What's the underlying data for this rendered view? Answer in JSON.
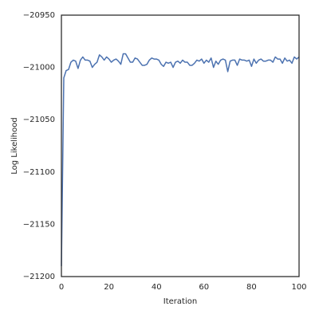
{
  "chart_data": {
    "type": "line",
    "xlabel": "Iteration",
    "ylabel": "Log Likelihood",
    "x": [
      0,
      1,
      2,
      3,
      4,
      5,
      6,
      7,
      8,
      9,
      10,
      11,
      12,
      13,
      14,
      15,
      16,
      17,
      18,
      19,
      20,
      21,
      22,
      23,
      24,
      25,
      26,
      27,
      28,
      29,
      30,
      31,
      32,
      33,
      34,
      35,
      36,
      37,
      38,
      39,
      40,
      41,
      42,
      43,
      44,
      45,
      46,
      47,
      48,
      49,
      50,
      51,
      52,
      53,
      54,
      55,
      56,
      57,
      58,
      59,
      60,
      61,
      62,
      63,
      64,
      65,
      66,
      67,
      68,
      69,
      70,
      71,
      72,
      73,
      74,
      75,
      76,
      77,
      78,
      79,
      80,
      81,
      82,
      83,
      84,
      85,
      86,
      87,
      88,
      89,
      90,
      91,
      92,
      93,
      94,
      95,
      96,
      97,
      98,
      99,
      100
    ],
    "series": [
      {
        "name": "Log Likelihood",
        "color": "#4c72b0",
        "values": [
          -21190,
          -21010,
          -21003,
          -21002,
          -20995,
          -20993,
          -20994,
          -21001,
          -20993,
          -20990,
          -20993,
          -20993,
          -20994,
          -21000,
          -20997,
          -20995,
          -20988,
          -20990,
          -20993,
          -20990,
          -20992,
          -20995,
          -20993,
          -20992,
          -20994,
          -20997,
          -20987,
          -20987,
          -20991,
          -20995,
          -20995,
          -20991,
          -20992,
          -20995,
          -20998,
          -20998,
          -20997,
          -20993,
          -20991,
          -20992,
          -20992,
          -20993,
          -20997,
          -20999,
          -20995,
          -20996,
          -20995,
          -21000,
          -20995,
          -20994,
          -20996,
          -20993,
          -20995,
          -20995,
          -20998,
          -20998,
          -20996,
          -20993,
          -20994,
          -20992,
          -20996,
          -20993,
          -20995,
          -20991,
          -21000,
          -20994,
          -20997,
          -20993,
          -20992,
          -20993,
          -21004,
          -20994,
          -20993,
          -20993,
          -20998,
          -20992,
          -20993,
          -20993,
          -20994,
          -20993,
          -20999,
          -20992,
          -20996,
          -20993,
          -20992,
          -20994,
          -20994,
          -20993,
          -20993,
          -20995,
          -20990,
          -20992,
          -20992,
          -20996,
          -20991,
          -20994,
          -20993,
          -20996,
          -20990,
          -20992,
          -20990
        ]
      }
    ],
    "xlim": [
      0,
      100
    ],
    "xticks": [
      0,
      20,
      40,
      60,
      80,
      100
    ],
    "ylim": [
      -21200,
      -20950
    ],
    "yticks": [
      {
        "value": -21200,
        "label": "−21200"
      },
      {
        "value": -21150,
        "label": "−21150"
      },
      {
        "value": -21100,
        "label": "−21100"
      },
      {
        "value": -21050,
        "label": "−21050"
      },
      {
        "value": -21000,
        "label": "−21000"
      },
      {
        "value": -20950,
        "label": "−20950"
      }
    ],
    "grid": false
  }
}
